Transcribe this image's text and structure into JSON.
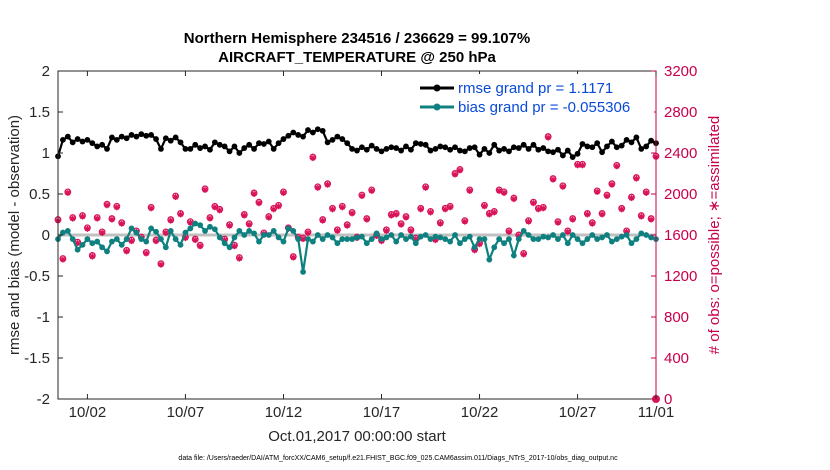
{
  "chart_data": {
    "type": "line",
    "title_line1": "Northern Hemisphere 234516 / 236629 = 99.107%",
    "title_line2": "AIRCRAFT_TEMPERATURE @ 250 hPa",
    "ylabel": "rmse and bias (model - observation)",
    "y2label": "# of obs: o=possible; ∗=assimilated",
    "xlabel": "Oct.01,2017 00:00:00 start",
    "footnote": "data file: /Users/raeder/DAI/ATM_forcXX/CAM6_setup/f.e21.FHIST_BGC.f09_025.CAM6assim.011/Diags_NTrS_2017-10/obs_diag_output.nc",
    "xlim": [
      0.5,
      31
    ],
    "ylim": [
      -2,
      2
    ],
    "y2lim": [
      0,
      3200
    ],
    "grid": false,
    "legend_position": "top-right",
    "x_ticks": [
      {
        "value": 2,
        "label": "10/02"
      },
      {
        "value": 7,
        "label": "10/07"
      },
      {
        "value": 12,
        "label": "10/12"
      },
      {
        "value": 17,
        "label": "10/17"
      },
      {
        "value": 22,
        "label": "10/22"
      },
      {
        "value": 27,
        "label": "10/27"
      },
      {
        "value": 32,
        "label": "11/01"
      }
    ],
    "y_ticks": [
      "-2",
      "-1.5",
      "-1",
      "-0.5",
      "0",
      "0.5",
      "1",
      "1.5",
      "2"
    ],
    "y2_ticks": [
      "0",
      "400",
      "800",
      "1200",
      "1600",
      "2000",
      "2400",
      "2800",
      "3200"
    ],
    "colors": {
      "rmse": "#000000",
      "bias": "#0f8080",
      "obs": "#d9135a",
      "zero_line": "#c0c0c0",
      "legend_text": "#0a4ad8",
      "right_axis": "#c8004c"
    },
    "series": [
      {
        "name": "rmse grand pr = 1.1171",
        "axis": "left",
        "x_start": 0.5,
        "dx": 0.25,
        "values": [
          0.96,
          1.16,
          1.2,
          1.13,
          1.17,
          1.14,
          1.16,
          1.12,
          1.08,
          1.1,
          1.05,
          1.19,
          1.16,
          1.2,
          1.18,
          1.22,
          1.2,
          1.23,
          1.21,
          1.22,
          1.17,
          1.05,
          1.18,
          1.15,
          1.19,
          1.13,
          1.05,
          1.05,
          1.1,
          1.06,
          1.08,
          1.04,
          1.13,
          1.1,
          1.08,
          1.02,
          1.08,
          1.0,
          1.06,
          1.1,
          1.05,
          1.12,
          1.11,
          1.14,
          1.05,
          1.12,
          1.17,
          1.21,
          1.25,
          1.22,
          1.2,
          1.28,
          1.25,
          1.29,
          1.27,
          1.13,
          1.16,
          1.2,
          1.17,
          1.12,
          1.05,
          1.03,
          1.07,
          1.04,
          1.09,
          1.05,
          1.02,
          1.05,
          1.07,
          1.06,
          1.03,
          1.08,
          1.04,
          1.12,
          1.11,
          1.1,
          1.03,
          1.05,
          1.08,
          1.07,
          1.04,
          1.07,
          1.03,
          1.02,
          1.06,
          1.07,
          0.98,
          1.05,
          1.0,
          1.1,
          1.03,
          1.05,
          1.02,
          1.07,
          1.06,
          1.1,
          1.05,
          1.1,
          1.04,
          1.06,
          1.02,
          1.01,
          1.04,
          0.97,
          1.03,
          0.95,
          0.99,
          1.11,
          1.08,
          1.07,
          1.12,
          1.01,
          1.08,
          1.14,
          1.07,
          1.09,
          1.16,
          1.13,
          1.19,
          1.05,
          1.08,
          1.15,
          1.12,
          1.18,
          1.1,
          1.06,
          1.13,
          1.09,
          1.08,
          1.05,
          1.08,
          1.07,
          1.04,
          1.08,
          1.05,
          1.03,
          1.05,
          1.08,
          1.05,
          1.08,
          1.15,
          1.07,
          1.14,
          1.12,
          1.08,
          1.1,
          1.03,
          1.08,
          1.02,
          1.15,
          1.1,
          1.05,
          1.0,
          1.07,
          1.05,
          1.2,
          1.3,
          1.35,
          1.38,
          1.2,
          1.1,
          1.02,
          1.05,
          1.08,
          1.15,
          1.25,
          1.32,
          1.1,
          1.05,
          1.2,
          1.17,
          1.28,
          1.12,
          1.1,
          1.15,
          1.13,
          1.05,
          1.18,
          1.2,
          1.22,
          1.17,
          1.15,
          1.08,
          1.16,
          1.13,
          1.1,
          1.35,
          1.25,
          1.2,
          1.18,
          1.12,
          1.15,
          1.22,
          1.1,
          1.08,
          1.13,
          1.16,
          1.23,
          1.25,
          1.1,
          1.08,
          1.17,
          1.03,
          1.12,
          1.15,
          1.18,
          1.05,
          1.27,
          1.2,
          1.15,
          1.12,
          1.2,
          1.08,
          1.1,
          1.13,
          1.15,
          1.08,
          1.06,
          1.12,
          1.1,
          1.05,
          1.2,
          1.15,
          1.1,
          1.12,
          1.15,
          1.2,
          1.17,
          1.23,
          1.2,
          1.14,
          1.11,
          1.18,
          1.1,
          1.17,
          1.2,
          1.14,
          1.05,
          1.05,
          1.08
        ]
      },
      {
        "name": "bias grand pr = -0.055306",
        "axis": "left",
        "x_start": 0.5,
        "dx": 0.25,
        "values": [
          -0.05,
          0.03,
          0.05,
          -0.05,
          -0.18,
          -0.12,
          -0.05,
          -0.1,
          -0.08,
          -0.15,
          -0.2,
          -0.08,
          -0.05,
          -0.12,
          -0.05,
          0.08,
          0.03,
          -0.05,
          -0.08,
          0.08,
          0.04,
          -0.05,
          -0.15,
          0.05,
          -0.05,
          -0.12,
          0.03,
          0.08,
          0.14,
          0.12,
          0.05,
          0.1,
          0.07,
          -0.03,
          -0.1,
          -0.15,
          -0.03,
          0.05,
          0.0,
          0.05,
          0.02,
          -0.08,
          0.0,
          0.0,
          0.05,
          -0.03,
          -0.08,
          0.08,
          0.05,
          -0.05,
          -0.45,
          -0.05,
          -0.08,
          0.0,
          -0.05,
          0.0,
          -0.03,
          -0.1,
          -0.05,
          -0.05,
          -0.05,
          -0.03,
          -0.02,
          -0.1,
          -0.05,
          0.02,
          -0.05,
          -0.03,
          0.0,
          -0.08,
          0.0,
          -0.05,
          -0.02,
          -0.1,
          -0.02,
          0.0,
          -0.05,
          -0.02,
          -0.03,
          -0.05,
          -0.08,
          0.0,
          -0.1,
          -0.05,
          -0.02,
          -0.15,
          -0.05,
          -0.05,
          -0.3,
          -0.15,
          -0.05,
          -0.1,
          -0.05,
          -0.25,
          -0.05,
          0.05,
          0.0,
          -0.05,
          -0.05,
          -0.02,
          -0.03,
          0.0,
          -0.05,
          0.0,
          -0.1,
          0.0,
          -0.05,
          -0.1,
          -0.05,
          0.0,
          -0.05,
          -0.03,
          0.0,
          -0.08,
          -0.05,
          -0.02,
          0.0,
          -0.1,
          -0.05,
          0.02,
          0.0,
          -0.03,
          -0.05,
          0.0,
          -0.05,
          -0.03,
          0.0,
          0.02,
          -0.05,
          0.0,
          0.0,
          -0.02,
          0.0,
          -0.05,
          0.0,
          0.03,
          -0.02,
          0.0,
          -0.05,
          -0.02,
          0.03,
          -0.1,
          -0.03,
          -0.2,
          -0.05,
          0.05,
          0.15,
          -0.05,
          -0.05,
          0.0,
          -0.05,
          -0.45,
          -0.05,
          0.0,
          -0.02,
          -0.05,
          -0.2,
          -0.05,
          0.0,
          0.0,
          -0.05,
          -0.25,
          -0.45,
          -0.2,
          -0.08,
          0.0,
          -0.03,
          0.05,
          -0.05,
          -0.1,
          0.0,
          -0.02,
          0.0,
          0.05,
          -0.05,
          -0.1,
          0.0,
          -0.03,
          -0.05,
          0.0,
          -0.15,
          -0.1,
          -0.05,
          -0.35,
          -0.1,
          0.05,
          0.02,
          -0.05,
          -0.1,
          0.0,
          -0.03,
          -0.2,
          -0.15,
          0.05,
          0.0,
          -0.1,
          -0.05,
          -0.15,
          0.0,
          -0.25,
          -0.05,
          0.0,
          -0.02,
          -0.05,
          -0.2,
          -0.08,
          0.0,
          0.03,
          -0.05,
          -0.08,
          0.05,
          0.15,
          0.1,
          0.03,
          -0.15,
          0.05,
          0.1,
          -0.05,
          0.0,
          -0.05,
          -0.25,
          -0.05,
          0.0,
          -0.1,
          -0.05,
          -0.03,
          0.1,
          0.05,
          -0.05,
          -0.1,
          -0.25,
          -0.1,
          0.02,
          0.1,
          0.05,
          0.18,
          0.2
        ]
      },
      {
        "name": "obs possible",
        "axis": "right",
        "marker": "o",
        "x_start": 0.5,
        "dx": 0.25,
        "values": [
          1750,
          1370,
          2020,
          1770,
          1530,
          1790,
          1670,
          1400,
          1770,
          1630,
          1900,
          1760,
          1880,
          1720,
          1450,
          1550,
          1640,
          1580,
          1430,
          1870,
          1550,
          1320,
          1630,
          1750,
          1980,
          1810,
          1580,
          1730,
          1560,
          1500,
          2050,
          1770,
          1880,
          1850,
          1560,
          1700,
          1500,
          1380,
          1800,
          1710,
          2010,
          1920,
          1620,
          1780,
          1860,
          1890,
          2020,
          1670,
          1390,
          1580,
          1570,
          1630,
          2360,
          2070,
          1750,
          2100,
          1860,
          1650,
          1880,
          1700,
          1820,
          1580,
          1990,
          1760,
          2040,
          1600,
          1550,
          1650,
          1800,
          1810,
          1710,
          1780,
          1650,
          1570,
          1860,
          2070,
          1830,
          1560,
          1720,
          1860,
          1880,
          2200,
          2240,
          1740,
          2040,
          1460,
          1520,
          1890,
          1810,
          1830,
          2040,
          2020,
          1640,
          1960,
          1600,
          1420,
          1740,
          1920,
          1860,
          1870,
          2560,
          2150,
          1730,
          2080,
          1640,
          1760,
          2290,
          2290,
          1810,
          1720,
          2030,
          1810,
          1990,
          2100,
          2280,
          1860,
          1640,
          1970,
          2160,
          1790,
          2020,
          1760,
          2370,
          1600,
          1850,
          1900,
          1650,
          1630,
          2130,
          1820,
          1880,
          1750,
          2160,
          1820,
          1570,
          1440,
          1950,
          2020,
          1880,
          1640,
          2420,
          1790,
          1880,
          1860,
          1670,
          1890,
          1560,
          2190,
          1710,
          1870,
          1830,
          1600,
          1910,
          1550,
          1700,
          1950,
          2230,
          1820,
          2340,
          1760,
          1670,
          2350,
          1870,
          1670,
          2060,
          1880,
          1800,
          2390,
          2280,
          1780,
          1890,
          1780,
          1690,
          1890,
          2400,
          2050,
          1820,
          1630,
          1930,
          1850,
          2400,
          1860,
          1760,
          2060,
          2220,
          1690,
          1720,
          1890,
          1800,
          1870,
          1590,
          2060,
          2210,
          1680,
          1910,
          1880,
          2120,
          1900,
          2170,
          2050,
          1740,
          2340,
          2560,
          1710,
          1700,
          1570,
          1860,
          1700,
          2050,
          2440,
          2430,
          1630,
          1590,
          1470,
          1950,
          1820,
          2000,
          1900,
          1860,
          1920,
          1780,
          2050,
          1710,
          1670,
          2040,
          1850,
          2410,
          1820,
          1480,
          2000,
          1740,
          1780,
          1770,
          2450,
          2430,
          1900,
          1790,
          1490,
          1700,
          2230,
          1940,
          1730,
          2000,
          1960,
          2040,
          2060,
          1830,
          2060,
          2000,
          2000,
          2000
        ]
      },
      {
        "name": "obs assimilated",
        "axis": "right",
        "marker": "*",
        "x_start": 0.5,
        "dx": 0.25,
        "values": [
          1740,
          1360,
          2010,
          1760,
          1520,
          1780,
          1660,
          1390,
          1760,
          1620,
          1890,
          1750,
          1870,
          1710,
          1440,
          1540,
          1630,
          1570,
          1420,
          1860,
          1540,
          1310,
          1620,
          1740,
          1970,
          1800,
          1570,
          1720,
          1550,
          1490,
          2040,
          1760,
          1870,
          1840,
          1550,
          1690,
          1490,
          1370,
          1790,
          1700,
          2000,
          1910,
          1610,
          1770,
          1850,
          1880,
          2010,
          1660,
          1380,
          1570,
          1560,
          1620,
          2350,
          2060,
          1740,
          2090,
          1850,
          1640,
          1870,
          1690,
          1810,
          1570,
          1980,
          1750,
          2030,
          1590,
          1540,
          1640,
          1790,
          1800,
          1700,
          1770,
          1640,
          1560,
          1850,
          2060,
          1820,
          1550,
          1710,
          1850,
          1870,
          2190,
          2230,
          1730,
          2030,
          1450,
          1510,
          1880,
          1800,
          1820,
          2030,
          2010,
          1630,
          1950,
          1590,
          1410,
          1730,
          1910,
          1850,
          1860,
          2550,
          2140,
          1720,
          2070,
          1630,
          1750,
          2280,
          2280,
          1800,
          1710,
          2020,
          1800,
          1980,
          2090,
          2270,
          1850,
          1630,
          1960,
          2150,
          1780,
          2010,
          1750,
          2360,
          1590,
          1840,
          1890,
          1640,
          1620,
          2120,
          1810,
          1870,
          1740,
          2150,
          1810,
          1560,
          1430,
          1940,
          2010,
          1870,
          1630,
          2410,
          1780,
          1870,
          1850,
          1660,
          1880,
          1550,
          2180,
          1700,
          1860,
          1820,
          1590,
          1900,
          1540,
          1690,
          1940,
          2220,
          1810,
          2330,
          1750,
          1660,
          2340,
          1860,
          1660,
          2050,
          1870,
          1790,
          2380,
          2270,
          1770,
          1880,
          1770,
          1680,
          1880,
          2390,
          2040,
          1810,
          1620,
          1920,
          1840,
          2390,
          1850,
          1750,
          2050,
          2210,
          1680,
          1710,
          1880,
          1790,
          1860,
          1580,
          2050,
          2200,
          1670,
          1900,
          1870,
          2110,
          1890,
          2160,
          2040,
          1730,
          2330,
          2550,
          1700,
          1690,
          1560,
          1850,
          1690,
          2040,
          2430,
          2420,
          1620,
          1580,
          1460,
          1940,
          1810,
          1990,
          1890,
          1850,
          1910,
          1770,
          2040,
          1700,
          1660,
          2030,
          1840,
          2400,
          1810,
          1470,
          1990,
          1730,
          1770,
          1760,
          2440,
          2420,
          1890,
          1780,
          1480,
          1690,
          2220,
          1930,
          1720,
          1990,
          1950,
          2030,
          2050,
          1820,
          2050,
          1990,
          1990,
          1990
        ]
      }
    ]
  }
}
